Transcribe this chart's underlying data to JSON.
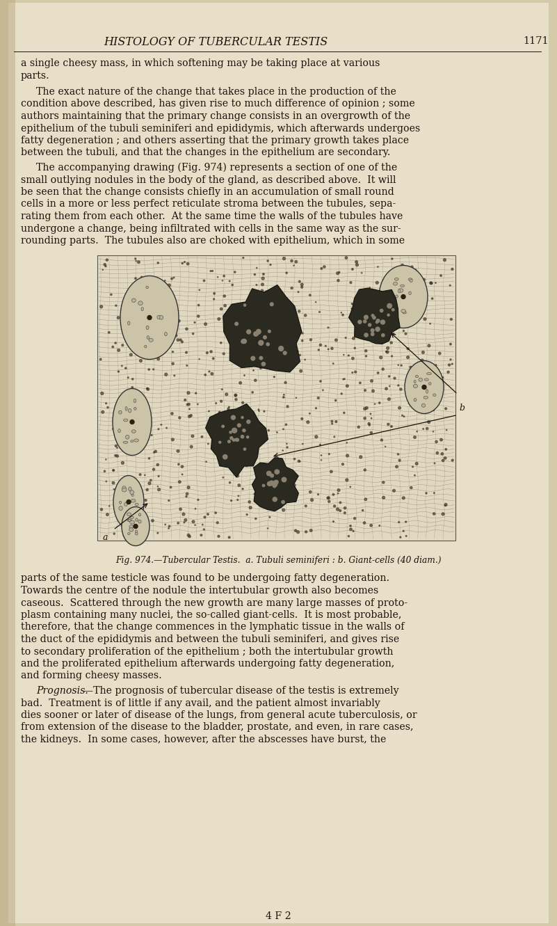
{
  "bg_color": "#d4c9a8",
  "page_color": "#e8dfc8",
  "text_color": "#1a1209",
  "title": "HISTOLOGY OF TUBERCULAR TESTIS",
  "page_num": "1171",
  "caption": "Fig. 974.—Tubercular Testis.  a. Tubuli seminiferi : b. Giant-cells (40 diam.)",
  "footer": "4 F 2",
  "para1": "a single cheesy mass, in which softening may be taking place at various\nparts.",
  "para2_indent": "    The exact nature of the change that takes place in the production of the\ncondition above described, has given rise to much difference of opinion ; some\nauthors maintaining that the primary change consists in an overgrowth of the\nepithelium of the tubuli seminiferi and epididymis, which afterwards undergoes\nfatty degeneration ; and others asserting that the primary growth takes place\nbetween the tubuli, and that the changes in the epithelium are secondary.",
  "para3_indent": "    The accompanying drawing (Fig. 974) represents a section of one of the\nsmall outlying nodules in the body of the gland, as described above.  It will\nbe seen that the change consists chiefly in an accumulation of small round\ncells in a more or less perfect reticulate stroma between the tubules, sepa-\nrating them from each other.  At the same time the walls of the tubules have\nundergone a change, being infiltrated with cells in the same way as the sur-\nrounding parts.  The tubules also are choked with epithelium, which in some",
  "para4": "parts of the same testicle was found to be undergoing fatty degeneration.\nTowards the centre of the nodule the intertubular growth also becomes\ncaseous.  Scattered through the new growth are many large masses of proto-\nplasm containing many nuclei, the so-called giant-cells.  It is most probable,\ntherefore, that the change commences in the lymphatic tissue in the walls of\nthe duct of the epididymis and between the tubuli seminiferi, and gives rise\nto secondary proliferation of the epithelium ; both the intertubular growth\nand the proliferated epithelium afterwards undergoing fatty degeneration,\nand forming cheesy masses.",
  "para5_indent": "    Prognosis.—The prognosis of tubercular disease of the testis is extremely\nbad.  Treatment is of little if any avail, and the patient almost invariably\ndies sooner or later of disease of the lungs, from general acute tuberculosis, or\nfrom extension of the disease to the bladder, prostate, and even, in rare cases,\nthe kidneys.  In some cases, however, after the abscesses have burst, the",
  "title_fs": 11.5,
  "body_fs": 10.2,
  "caption_fs": 8.8
}
